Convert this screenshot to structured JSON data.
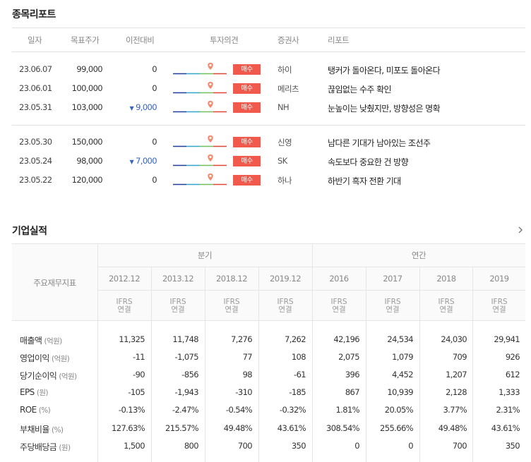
{
  "reports": {
    "title": "종목리포트",
    "headers": [
      "일자",
      "목표주가",
      "이전대비",
      "투자의견",
      "증권사",
      "리포트"
    ],
    "rows": [
      {
        "date": "23.06.07",
        "target": "99,000",
        "diff": "0",
        "diff_down": false,
        "opinion": "매수",
        "broker": "하이",
        "title": "탱커가 돌아온다, 미포도 돌아온다"
      },
      {
        "date": "23.06.01",
        "target": "100,000",
        "diff": "0",
        "diff_down": false,
        "opinion": "매수",
        "broker": "메리츠",
        "title": "끊임없는 수주 확인"
      },
      {
        "date": "23.05.31",
        "target": "103,000",
        "diff": "9,000",
        "diff_down": true,
        "opinion": "매수",
        "broker": "NH",
        "title": "눈높이는 낮췄지만, 방향성은 명확"
      },
      {
        "date": "23.05.30",
        "target": "150,000",
        "diff": "0",
        "diff_down": false,
        "opinion": "매수",
        "broker": "신영",
        "title": "남다른 기대가 남아있는 조선주"
      },
      {
        "date": "23.05.24",
        "target": "98,000",
        "diff": "7,000",
        "diff_down": true,
        "opinion": "매수",
        "broker": "SK",
        "title": "속도보다 중요한 건 방향"
      },
      {
        "date": "23.05.22",
        "target": "120,000",
        "diff": "0",
        "diff_down": false,
        "opinion": "매수",
        "broker": "하나",
        "title": "하반기 흑자 전환 기대"
      }
    ]
  },
  "financials": {
    "title": "기업실적",
    "row_header": "주요재무지표",
    "group_quarterly": "분기",
    "group_annual": "연간",
    "periods": [
      "2012.12",
      "2013.12",
      "2018.12",
      "2019.12",
      "2016",
      "2017",
      "2018",
      "2019"
    ],
    "standard_line1": "IFRS",
    "standard_line2": "연결",
    "rows": [
      {
        "name": "매출액",
        "unit": "(억원)",
        "values": [
          "11,325",
          "11,748",
          "7,276",
          "7,262",
          "42,196",
          "24,534",
          "24,030",
          "29,941"
        ]
      },
      {
        "name": "영업이익",
        "unit": "(억원)",
        "values": [
          "-11",
          "-1,075",
          "77",
          "108",
          "2,075",
          "1,079",
          "709",
          "926"
        ]
      },
      {
        "name": "당기순이익",
        "unit": "(억원)",
        "values": [
          "-90",
          "-856",
          "98",
          "-61",
          "396",
          "4,452",
          "1,207",
          "612"
        ]
      },
      {
        "name": "EPS",
        "unit": "(원)",
        "values": [
          "-105",
          "-1,943",
          "-310",
          "-185",
          "867",
          "10,939",
          "2,128",
          "1,333"
        ]
      },
      {
        "name": "ROE",
        "unit": "(%)",
        "values": [
          "-0.13%",
          "-2.47%",
          "-0.54%",
          "-0.32%",
          "1.81%",
          "20.05%",
          "3.77%",
          "2.31%"
        ]
      },
      {
        "name": "부채비율",
        "unit": "(%)",
        "values": [
          "127.63%",
          "215.57%",
          "49.48%",
          "43.61%",
          "308.54%",
          "255.66%",
          "49.48%",
          "43.61%"
        ]
      },
      {
        "name": "주당배당금",
        "unit": "(원)",
        "values": [
          "1,500",
          "800",
          "700",
          "350",
          "0",
          "0",
          "700",
          "350"
        ]
      }
    ]
  },
  "colors": {
    "badge": "#f0594c",
    "down": "#3464c6",
    "pin": "#f28a6e"
  }
}
